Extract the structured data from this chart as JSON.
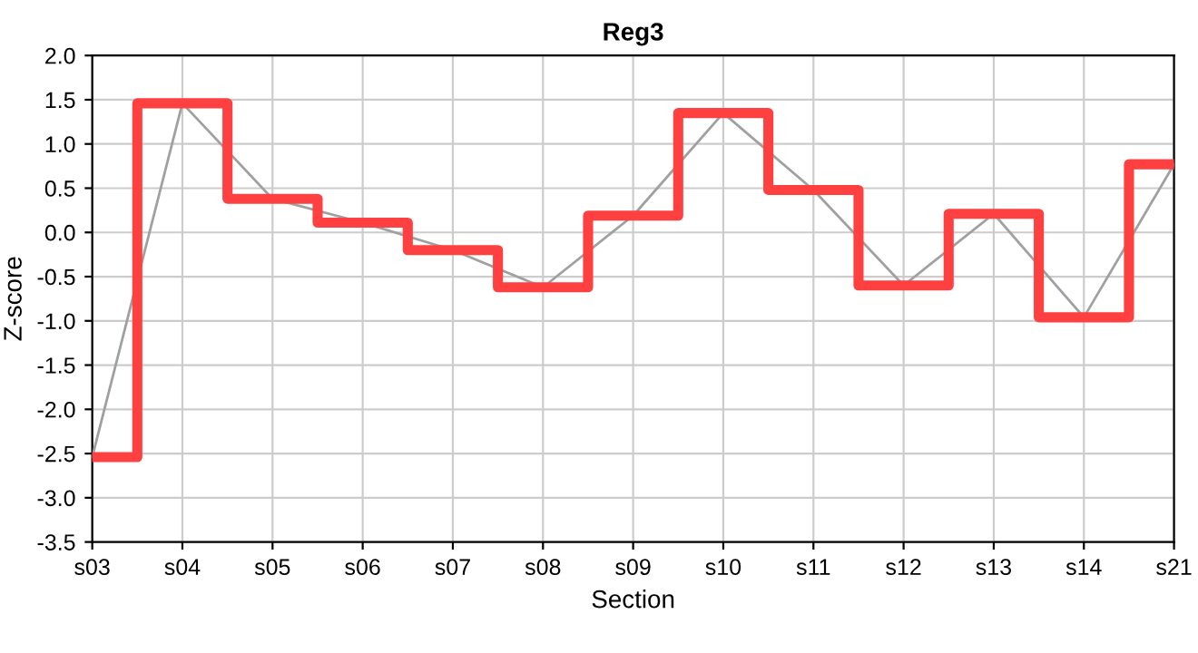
{
  "chart_data": {
    "type": "step",
    "title": "Reg3",
    "xlabel": "Section",
    "ylabel": "Z-score",
    "categories": [
      "s03",
      "s04",
      "s05",
      "s06",
      "s07",
      "s08",
      "s09",
      "s10",
      "s11",
      "s12",
      "s13",
      "s14",
      "s21"
    ],
    "series": [
      {
        "type": "line",
        "color": "#a0a0a0",
        "values": [
          -2.54,
          1.46,
          0.38,
          0.11,
          -0.2,
          -0.62,
          0.19,
          1.35,
          0.48,
          -0.6,
          0.21,
          -0.96,
          0.77
        ]
      },
      {
        "color": "#ff4040",
        "values": [
          -2.54,
          1.46,
          0.38,
          0.11,
          -0.2,
          -0.62,
          0.19,
          1.35,
          0.48,
          -0.6,
          0.21,
          -0.96,
          0.77
        ]
      }
    ],
    "ylim": [
      -3.5,
      2.0
    ],
    "yticks": [
      {
        "value": -3.5,
        "label": "-3.5"
      },
      {
        "value": -3.0,
        "label": "-3.0"
      },
      {
        "value": -2.5,
        "label": "-2.5"
      },
      {
        "value": -2.0,
        "label": "-2.0"
      },
      {
        "value": -1.5,
        "label": "-1.5"
      },
      {
        "value": -1.0,
        "label": "-1.0"
      },
      {
        "value": -0.5,
        "label": "-0.5"
      },
      {
        "value": 0.0,
        "label": "0.0"
      },
      {
        "value": 0.5,
        "label": "0.5"
      },
      {
        "value": 1.0,
        "label": "1.0"
      },
      {
        "value": 1.5,
        "label": "1.5"
      },
      {
        "value": 2.0,
        "label": "2.0"
      }
    ],
    "grid": true,
    "legend": false
  }
}
